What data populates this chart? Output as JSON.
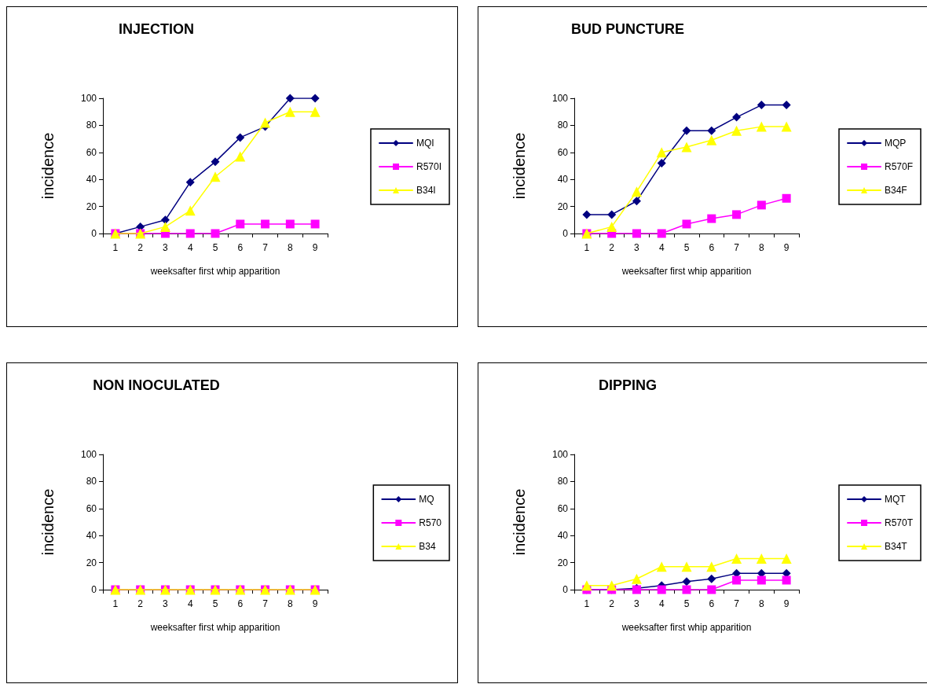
{
  "chart_data": [
    {
      "type": "line",
      "title": "INJECTION",
      "xlabel": "weeksafter first whip apparition",
      "ylabel": "incidence",
      "categories": [
        "1",
        "2",
        "3",
        "4",
        "5",
        "6",
        "7",
        "8",
        "9"
      ],
      "ylim": [
        0,
        100
      ],
      "yticks": [
        0,
        20,
        40,
        60,
        80,
        100
      ],
      "grid": false,
      "legend": "right",
      "series": [
        {
          "name": "MQI",
          "color": "#000080",
          "marker": "diamond",
          "values": [
            0,
            5,
            10,
            38,
            53,
            71,
            79,
            100,
            100
          ]
        },
        {
          "name": "R570I",
          "color": "#ff00ff",
          "marker": "square",
          "values": [
            0,
            0,
            0,
            0,
            0,
            7,
            7,
            7,
            7
          ]
        },
        {
          "name": "B34I",
          "color": "#ffff00",
          "marker": "triangle",
          "values": [
            0,
            0,
            5,
            17,
            42,
            57,
            82,
            90,
            90
          ]
        }
      ]
    },
    {
      "type": "line",
      "title": "BUD PUNCTURE",
      "xlabel": "weeksafter first whip apparition",
      "ylabel": "incidence",
      "categories": [
        "1",
        "2",
        "3",
        "4",
        "5",
        "6",
        "7",
        "8",
        "9"
      ],
      "ylim": [
        0,
        100
      ],
      "yticks": [
        0,
        20,
        40,
        60,
        80,
        100
      ],
      "grid": false,
      "legend": "right",
      "series": [
        {
          "name": "MQP",
          "color": "#000080",
          "marker": "diamond",
          "values": [
            14,
            14,
            24,
            52,
            76,
            76,
            86,
            95,
            95
          ]
        },
        {
          "name": "R570F",
          "color": "#ff00ff",
          "marker": "square",
          "values": [
            0,
            0,
            0,
            0,
            7,
            11,
            14,
            21,
            26
          ]
        },
        {
          "name": "B34F",
          "color": "#ffff00",
          "marker": "triangle",
          "values": [
            0,
            5,
            31,
            60,
            64,
            69,
            76,
            79,
            79
          ]
        }
      ]
    },
    {
      "type": "line",
      "title": "NON INOCULATED",
      "xlabel": "weeksafter first whip apparition",
      "ylabel": "incidence",
      "categories": [
        "1",
        "2",
        "3",
        "4",
        "5",
        "6",
        "7",
        "8",
        "9"
      ],
      "ylim": [
        0,
        100
      ],
      "yticks": [
        0,
        20,
        40,
        60,
        80,
        100
      ],
      "grid": false,
      "legend": "right",
      "series": [
        {
          "name": "MQ",
          "color": "#000080",
          "marker": "diamond",
          "values": [
            null,
            null,
            null,
            null,
            null,
            null,
            null,
            null,
            null
          ]
        },
        {
          "name": "R570",
          "color": "#ff00ff",
          "marker": "square",
          "values": [
            0,
            0,
            0,
            0,
            0,
            0,
            0,
            0,
            0
          ]
        },
        {
          "name": "B34",
          "color": "#ffff00",
          "marker": "triangle",
          "values": [
            0,
            0,
            0,
            0,
            0,
            0,
            0,
            0,
            0
          ]
        }
      ]
    },
    {
      "type": "line",
      "title": "DIPPING",
      "xlabel": "weeksafter first whip apparition",
      "ylabel": "incidence",
      "categories": [
        "1",
        "2",
        "3",
        "4",
        "5",
        "6",
        "7",
        "8",
        "9"
      ],
      "ylim": [
        0,
        100
      ],
      "yticks": [
        0,
        20,
        40,
        60,
        80,
        100
      ],
      "grid": false,
      "legend": "right",
      "series": [
        {
          "name": "MQT",
          "color": "#000080",
          "marker": "diamond",
          "values": [
            0,
            0,
            1,
            3,
            6,
            8,
            12,
            12,
            12
          ]
        },
        {
          "name": "R570T",
          "color": "#ff00ff",
          "marker": "square",
          "values": [
            0,
            0,
            0,
            0,
            0,
            0,
            7,
            7,
            7
          ]
        },
        {
          "name": "B34T",
          "color": "#ffff00",
          "marker": "triangle",
          "values": [
            3,
            3,
            8,
            17,
            17,
            17,
            23,
            23,
            23
          ]
        }
      ]
    }
  ]
}
